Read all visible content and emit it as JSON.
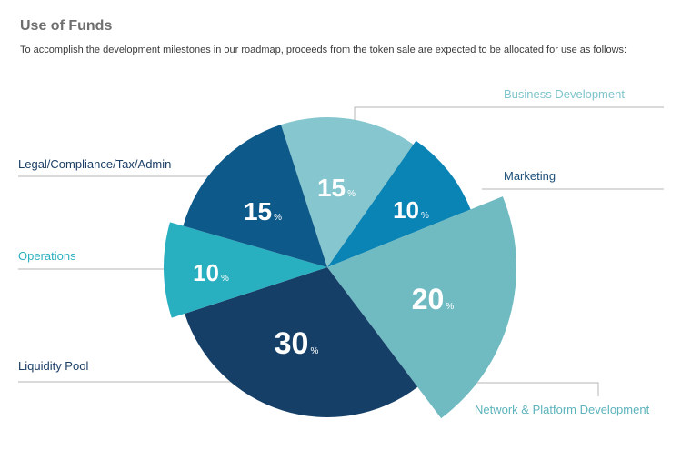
{
  "header": {
    "title": "Use of Funds",
    "subtitle": "To accomplish the development milestones in our roadmap, proceeds from the token sale are expected to be allocated for use as follows:"
  },
  "chart_data": {
    "type": "pie",
    "title": "Use of Funds",
    "unit_symbol": "%",
    "slices": [
      {
        "label": "Business Development",
        "value": 15,
        "color": "#86c6ce"
      },
      {
        "label": "Marketing",
        "value": 10,
        "color": "#0a83b5"
      },
      {
        "label": "Network & Platform Development",
        "value": 20,
        "color": "#70bac2"
      },
      {
        "label": "Liquidity Pool",
        "value": 30,
        "color": "#153f67"
      },
      {
        "label": "Operations",
        "value": 10,
        "color": "#29b0c0"
      },
      {
        "label": "Legal/Compliance/Tax/Admin",
        "value": 15,
        "color": "#0d5a8a"
      }
    ],
    "label_colors": {
      "Business Development": "#7ec4cc",
      "Marketing": "#1b4f7a",
      "Network & Platform Development": "#5cb3bc",
      "Liquidity Pool": "#1b3f66",
      "Operations": "#2ab0c0",
      "Legal/Compliance/Tax/Admin": "#1b3f66"
    }
  }
}
